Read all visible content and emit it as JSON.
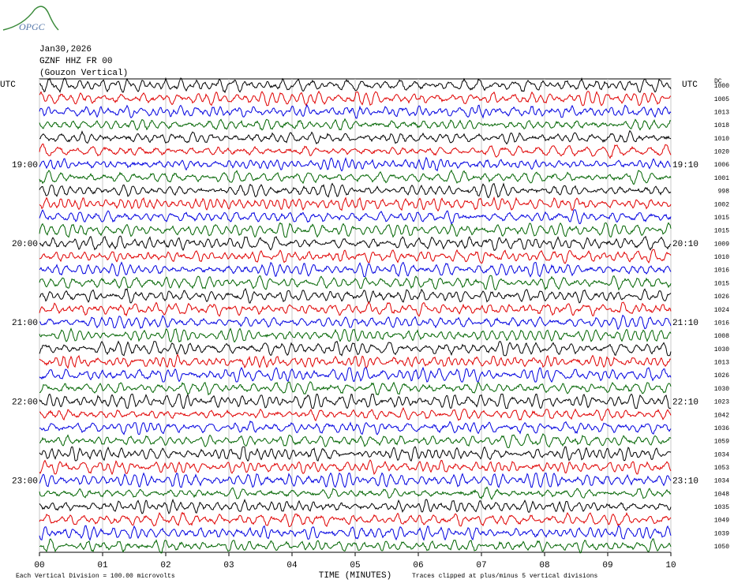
{
  "chart_data": {
    "type": "helicorder",
    "logo": "OPGC",
    "title_lines": [
      "Jan30,2026",
      "GZNF HHZ FR 00",
      "(Gouzon Vertical)"
    ],
    "left_header": "UTC",
    "right_header": "UTC",
    "dc_header": "DC",
    "xlabel": "TIME (MINUTES)",
    "footer_left": "Each Vertical Division =  100.00 microvolts",
    "footer_right": "Traces clipped at plus/minus 5 vertical divisions",
    "xlim": [
      0,
      10
    ],
    "xticks": [
      {
        "value": 0,
        "label": "00"
      },
      {
        "value": 1,
        "label": "01"
      },
      {
        "value": 2,
        "label": "02"
      },
      {
        "value": 3,
        "label": "03"
      },
      {
        "value": 4,
        "label": "04"
      },
      {
        "value": 5,
        "label": "05"
      },
      {
        "value": 6,
        "label": "06"
      },
      {
        "value": 7,
        "label": "07"
      },
      {
        "value": 8,
        "label": "08"
      },
      {
        "value": 9,
        "label": "09"
      },
      {
        "value": 10,
        "label": "10"
      }
    ],
    "grid": true,
    "trace_colors": [
      "#000000",
      "#e00000",
      "#0000e0",
      "#006400"
    ],
    "rows": [
      {
        "dc": "1000"
      },
      {
        "dc": "1005"
      },
      {
        "dc": "1013"
      },
      {
        "dc": "1018"
      },
      {
        "dc": "1010"
      },
      {
        "dc": "1020"
      },
      {
        "dc": "1006",
        "left": "19:00",
        "right": "19:10"
      },
      {
        "dc": "1001"
      },
      {
        "dc": "998"
      },
      {
        "dc": "1002"
      },
      {
        "dc": "1015"
      },
      {
        "dc": "1015"
      },
      {
        "dc": "1009",
        "left": "20:00",
        "right": "20:10"
      },
      {
        "dc": "1010"
      },
      {
        "dc": "1016"
      },
      {
        "dc": "1015"
      },
      {
        "dc": "1026"
      },
      {
        "dc": "1024"
      },
      {
        "dc": "1016",
        "left": "21:00",
        "right": "21:10"
      },
      {
        "dc": "1008"
      },
      {
        "dc": "1030"
      },
      {
        "dc": "1013"
      },
      {
        "dc": "1026"
      },
      {
        "dc": "1030"
      },
      {
        "dc": "1023",
        "left": "22:00",
        "right": "22:10"
      },
      {
        "dc": "1042"
      },
      {
        "dc": "1036"
      },
      {
        "dc": "1059"
      },
      {
        "dc": "1034"
      },
      {
        "dc": "1053"
      },
      {
        "dc": "1034",
        "left": "23:00",
        "right": "23:10"
      },
      {
        "dc": "1048"
      },
      {
        "dc": "1035"
      },
      {
        "dc": "1049"
      },
      {
        "dc": "1039"
      },
      {
        "dc": "1050"
      }
    ]
  }
}
